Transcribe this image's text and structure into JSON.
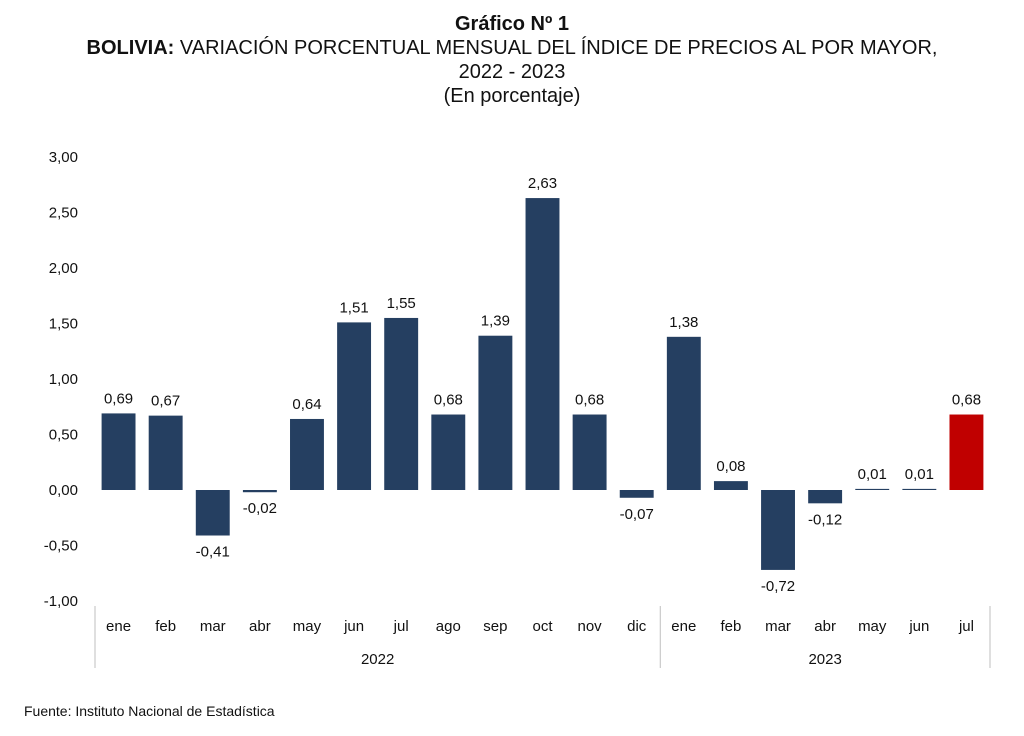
{
  "header": {
    "chart_number": "Gráfico Nº 1",
    "title_bold": "BOLIVIA:",
    "title_rest": "VARIACIÓN PORCENTUAL MENSUAL DEL ÍNDICE DE PRECIOS AL POR MAYOR,",
    "years": "2022 - 2023",
    "unit": "(En porcentaje)"
  },
  "source": "Fuente: Instituto Nacional de Estadística",
  "colors": {
    "bar": "#253f61",
    "highlight": "#c00000",
    "axis": "#bfbfbf"
  },
  "chart_data": {
    "type": "bar",
    "categories": [
      "ene",
      "feb",
      "mar",
      "abr",
      "may",
      "jun",
      "jul",
      "ago",
      "sep",
      "oct",
      "nov",
      "dic",
      "ene",
      "feb",
      "mar",
      "abr",
      "may",
      "jun",
      "jul"
    ],
    "groups": [
      {
        "label": "2022",
        "count": 12
      },
      {
        "label": "2023",
        "count": 7
      }
    ],
    "values": [
      0.69,
      0.67,
      -0.41,
      -0.02,
      0.64,
      1.51,
      1.55,
      0.68,
      1.39,
      2.63,
      0.68,
      -0.07,
      1.38,
      0.08,
      -0.72,
      -0.12,
      0.01,
      0.01,
      0.68
    ],
    "value_labels": [
      "0,69",
      "0,67",
      "-0,41",
      "-0,02",
      "0,64",
      "1,51",
      "1,55",
      "0,68",
      "1,39",
      "2,63",
      "0,68",
      "-0,07",
      "1,38",
      "0,08",
      "-0,72",
      "-0,12",
      "0,01",
      "0,01",
      "0,68"
    ],
    "highlight_index": 18,
    "ylim": [
      -1.0,
      3.0
    ],
    "yticks": [
      3.0,
      2.5,
      2.0,
      1.5,
      1.0,
      0.5,
      0.0,
      -0.5,
      -1.0
    ],
    "ytick_labels": [
      "3,00",
      "2,50",
      "2,00",
      "1,50",
      "1,00",
      "0,50",
      "0,00",
      "-0,50",
      "-1,00"
    ],
    "xlabel": "",
    "ylabel": "",
    "grid": false,
    "legend": "none"
  }
}
